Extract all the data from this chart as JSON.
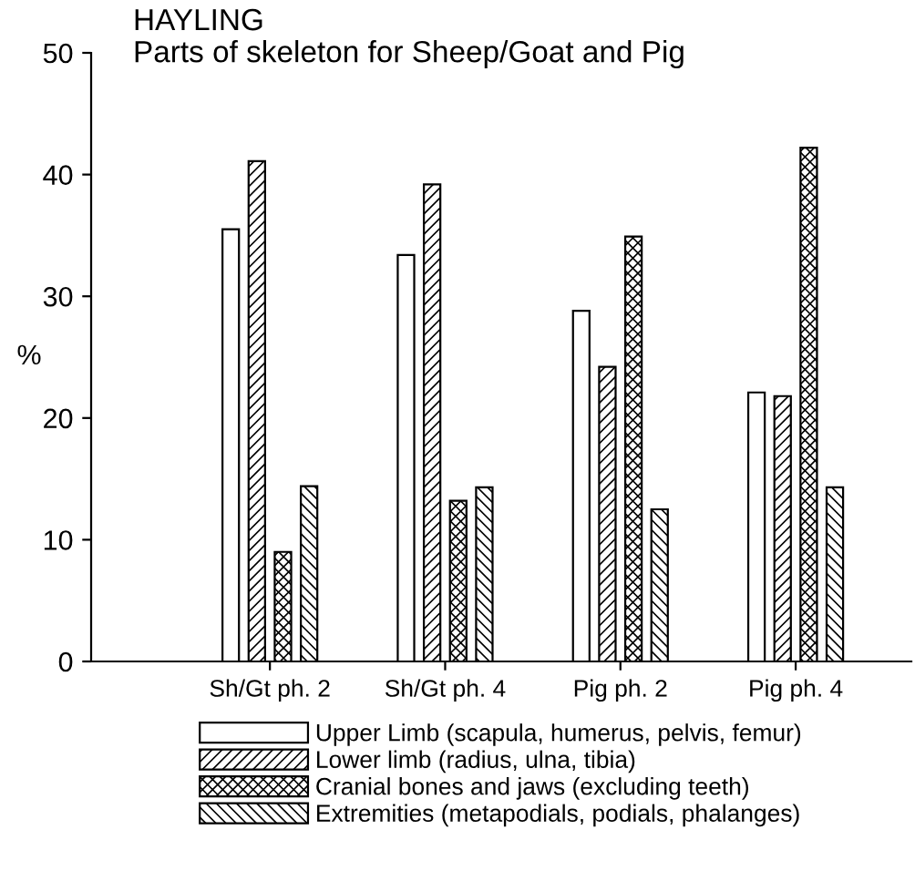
{
  "chart_data": {
    "type": "bar",
    "title": "HAYLING",
    "subtitle": "Parts of skeleton for Sheep/Goat and Pig",
    "ylabel": "%",
    "categories": [
      "Sh/Gt ph. 2",
      "Sh/Gt ph. 4",
      "Pig ph. 2",
      "Pig ph. 4"
    ],
    "series": [
      {
        "name": "Upper Limb (scapula, humerus, pelvis, femur)",
        "color": "#ffffff",
        "values": [
          35.5,
          33.4,
          28.8,
          22.1
        ]
      },
      {
        "name": "Lower limb (radius, ulna, tibia)",
        "color": "#000000",
        "values": [
          41.1,
          39.2,
          24.2,
          21.8
        ]
      },
      {
        "name": "Cranial bones and jaws (excluding teeth)",
        "color": "#000000",
        "values": [
          9.0,
          13.2,
          34.9,
          42.2
        ]
      },
      {
        "name": "Extremities (metapodials, podials, phalanges)",
        "color": "#000000",
        "values": [
          14.4,
          14.3,
          12.5,
          14.3
        ]
      }
    ],
    "ylim": [
      0,
      50
    ],
    "yticks": [
      0,
      10,
      20,
      30,
      40,
      50
    ],
    "grid": false,
    "legend": "bottom"
  }
}
